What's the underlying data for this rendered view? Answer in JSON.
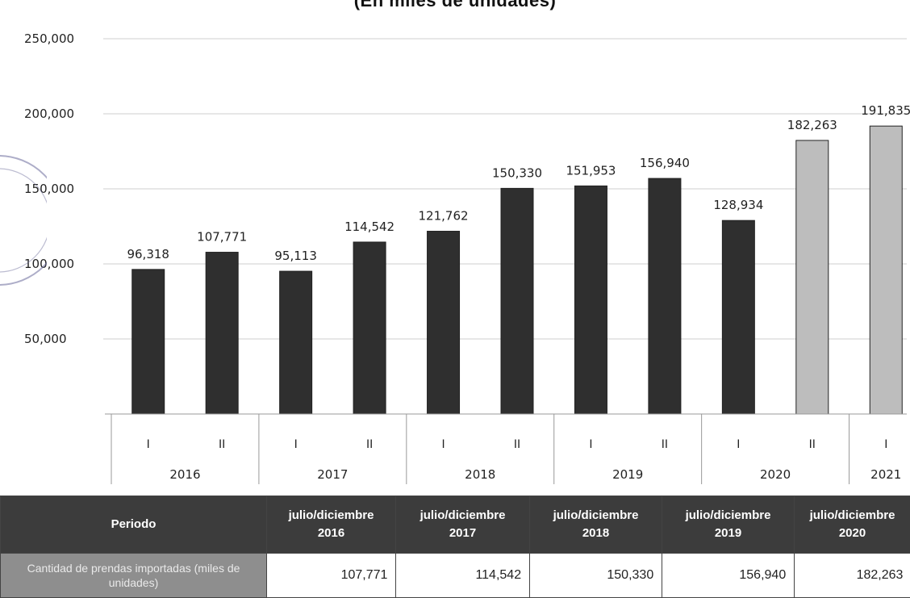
{
  "title": "(En miles de unidades)",
  "chart_data": {
    "type": "bar",
    "y_ticks": [
      "250,000",
      "200,000",
      "150,000",
      "100,000",
      "50,000"
    ],
    "ylim": [
      0,
      250000
    ],
    "bars": [
      {
        "half": "I",
        "year": "2016",
        "value": 96318,
        "label": "96,318",
        "highlight": false
      },
      {
        "half": "II",
        "year": "2016",
        "value": 107771,
        "label": "107,771",
        "highlight": false
      },
      {
        "half": "I",
        "year": "2017",
        "value": 95113,
        "label": "95,113",
        "highlight": false
      },
      {
        "half": "II",
        "year": "2017",
        "value": 114542,
        "label": "114,542",
        "highlight": false
      },
      {
        "half": "I",
        "year": "2018",
        "value": 121762,
        "label": "121,762",
        "highlight": false
      },
      {
        "half": "II",
        "year": "2018",
        "value": 150330,
        "label": "150,330",
        "highlight": false
      },
      {
        "half": "I",
        "year": "2019",
        "value": 151953,
        "label": "151,953",
        "highlight": false
      },
      {
        "half": "II",
        "year": "2019",
        "value": 156940,
        "label": "156,940",
        "highlight": false
      },
      {
        "half": "I",
        "year": "2020",
        "value": 128934,
        "label": "128,934",
        "highlight": false
      },
      {
        "half": "II",
        "year": "2020",
        "value": 182263,
        "label": "182,263",
        "highlight": true
      },
      {
        "half": "I",
        "year": "2021",
        "value": 191835,
        "label": "191,835",
        "highlight": true
      }
    ],
    "years": [
      "2016",
      "2017",
      "2018",
      "2019",
      "2020",
      "2021"
    ],
    "grid": true,
    "colors": {
      "bar": "#2f2f2f",
      "bar_highlight": "#bdbdbd",
      "grid": "#cfcfcf",
      "axis": "#999999"
    }
  },
  "table": {
    "header_label": "Periodo",
    "periods": [
      {
        "line1": "julio/diciembre",
        "line2": "2016"
      },
      {
        "line1": "julio/diciembre",
        "line2": "2017"
      },
      {
        "line1": "julio/diciembre",
        "line2": "2018"
      },
      {
        "line1": "julio/diciembre",
        "line2": "2019"
      },
      {
        "line1": "julio/diciembre",
        "line2": "2020"
      }
    ],
    "row_label": "Cantidad de prendas importadas (miles de unidades)",
    "values": [
      "107,771",
      "114,542",
      "150,330",
      "156,940",
      "182,263"
    ]
  }
}
